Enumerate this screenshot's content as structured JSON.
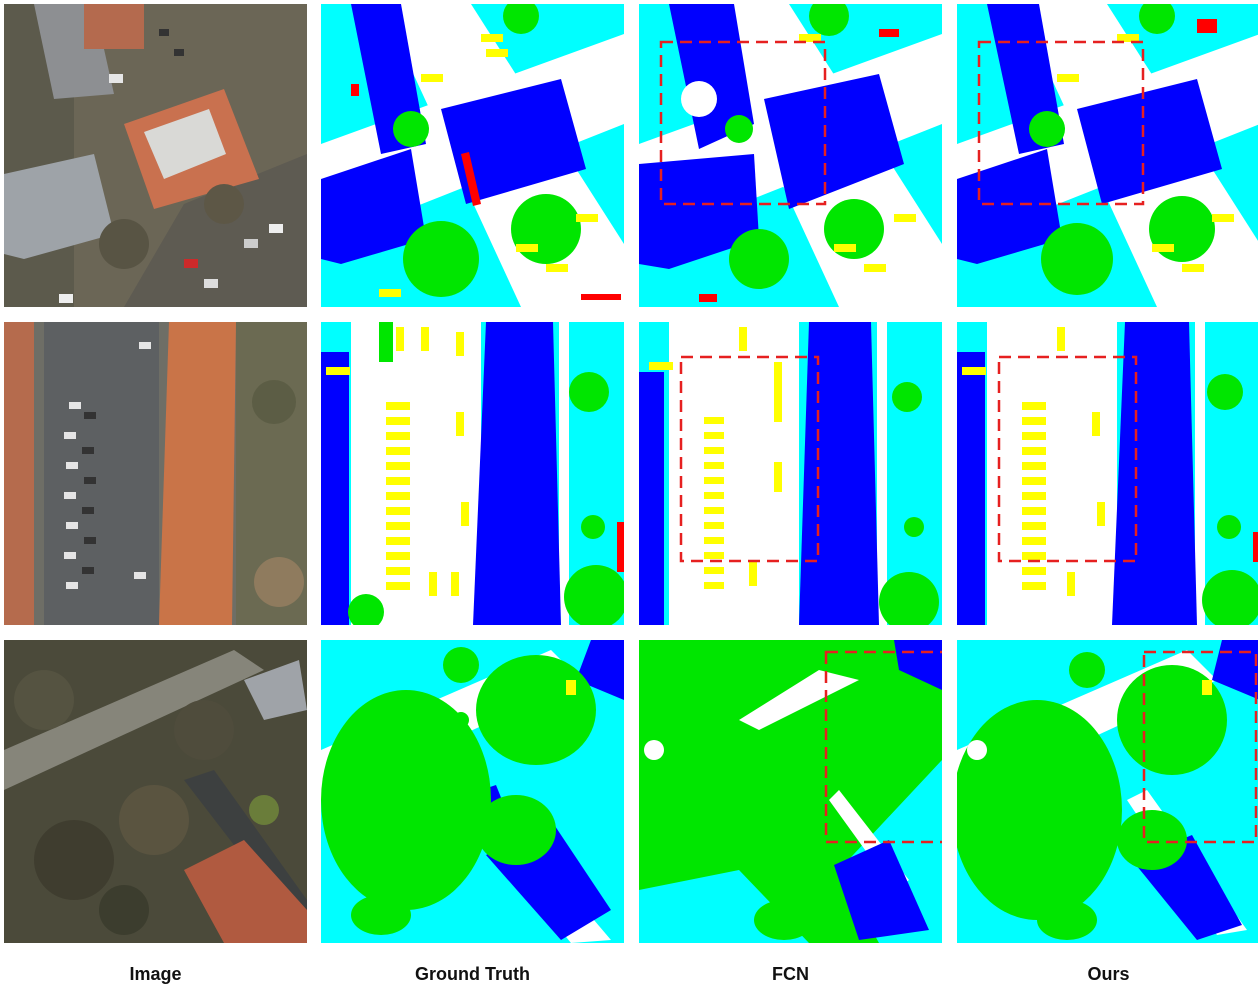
{
  "figure": {
    "columns": [
      {
        "id": "image",
        "label": "Image"
      },
      {
        "id": "gt",
        "label": "Ground Truth"
      },
      {
        "id": "fcn",
        "label": "FCN"
      },
      {
        "id": "ours",
        "label": "Ours"
      }
    ],
    "rows": 3,
    "class_colors": {
      "impervious_surface": "#ffffff",
      "building": "#0000ff",
      "low_vegetation": "#00ffff",
      "tree": "#00ff00",
      "car": "#ffff00",
      "clutter": "#ff0000"
    },
    "highlight_box_color": "#e62020"
  }
}
